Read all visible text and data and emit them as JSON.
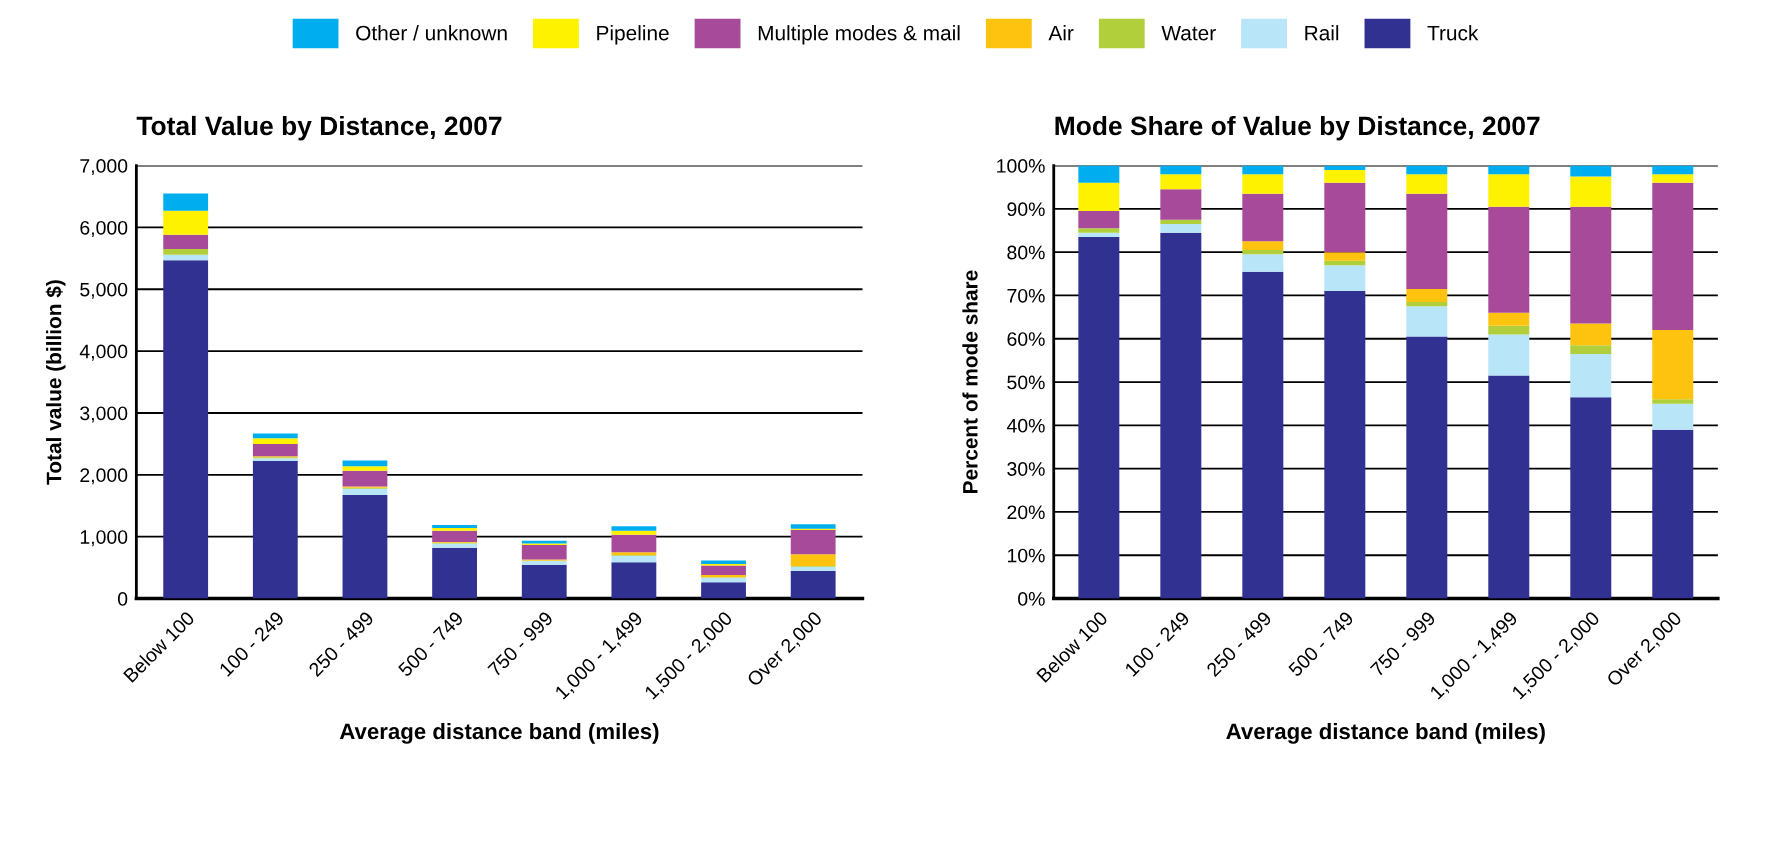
{
  "chart_data": [
    {
      "type": "bar",
      "title": "Total Value by Distance, 2007",
      "xlabel": "Average distance band (miles)",
      "ylabel": "Total value (billion $)",
      "stacked": true,
      "grid": "y",
      "legend": "top",
      "categories": [
        "Below 100",
        "100 - 249",
        "250 - 499",
        "500 - 749",
        "750 - 999",
        "1,000 - 1,499",
        "1,500 - 2,000",
        "Over 2,000"
      ],
      "ylim": [
        0,
        7000
      ],
      "yticks": [
        0,
        {
          "value": 1000,
          "label": "1,000"
        },
        {
          "value": 2000,
          "label": "2,000"
        },
        {
          "value": 3000,
          "label": "3,000"
        },
        {
          "value": 4000,
          "label": "4,000"
        },
        {
          "value": 5000,
          "label": "5,000"
        },
        {
          "value": 6000,
          "label": "6,000"
        },
        {
          "value": 7000,
          "label": "7,000"
        }
      ],
      "series": [
        {
          "name": "Truck",
          "color": "#313192",
          "values": [
            5470,
            2225,
            1675,
            820,
            545,
            585,
            265,
            445
          ]
        },
        {
          "name": "Rail",
          "color": "#b9e5f9",
          "values": [
            90,
            45,
            100,
            70,
            65,
            105,
            70,
            70
          ]
        },
        {
          "name": "Water",
          "color": "#b0cf3a",
          "values": [
            90,
            15,
            15,
            10,
            null,
            15,
            10,
            10
          ]
        },
        {
          "name": "Air",
          "color": "#fdc30e",
          "values": [
            null,
            15,
            20,
            15,
            20,
            45,
            35,
            190
          ]
        },
        {
          "name": "Multiple modes & mail",
          "color": "#a84a9a",
          "values": [
            230,
            200,
            255,
            180,
            235,
            280,
            155,
            395
          ]
        },
        {
          "name": "Pipeline",
          "color": "#fff200",
          "values": [
            390,
            90,
            75,
            45,
            25,
            65,
            25,
            20
          ]
        },
        {
          "name": "Other / unknown",
          "color": "#00aeef",
          "values": [
            280,
            80,
            90,
            50,
            45,
            75,
            55,
            70
          ]
        }
      ]
    },
    {
      "type": "bar",
      "title": "Mode Share of Value by Distance, 2007",
      "xlabel": "Average distance band (miles)",
      "ylabel": "Percent of mode share",
      "stacked": true,
      "grid": "y",
      "categories": [
        "Below 100",
        "100 - 249",
        "250 - 499",
        "500 - 749",
        "750 - 999",
        "1,000 - 1,499",
        "1,500 - 2,000",
        "Over 2,000"
      ],
      "ylim": [
        0,
        100
      ],
      "yticks": [
        {
          "value": 0,
          "label": "0%"
        },
        {
          "value": 10,
          "label": "10%"
        },
        {
          "value": 20,
          "label": "20%"
        },
        {
          "value": 30,
          "label": "30%"
        },
        {
          "value": 40,
          "label": "40%"
        },
        {
          "value": 50,
          "label": "50%"
        },
        {
          "value": 60,
          "label": "60%"
        },
        {
          "value": 70,
          "label": "70%"
        },
        {
          "value": 80,
          "label": "80%"
        },
        {
          "value": 90,
          "label": "90%"
        },
        {
          "value": 100,
          "label": "100%"
        }
      ],
      "series": [
        {
          "color": "#313192",
          "values": [
            83.5,
            84.5,
            75.5,
            71,
            60.5,
            51.5,
            46.5,
            39
          ]
        },
        {
          "color": "#b9e5f9",
          "values": [
            1,
            2,
            4,
            6,
            7,
            9.5,
            10,
            6
          ]
        },
        {
          "color": "#b0cf3a",
          "values": [
            1,
            1,
            1,
            1,
            1,
            2,
            2,
            1
          ]
        },
        {
          "color": "#fdc30e",
          "values": [
            0,
            0,
            2,
            2,
            3,
            3,
            5,
            16
          ]
        },
        {
          "color": "#a84a9a",
          "values": [
            4,
            7,
            11,
            16,
            22,
            24.5,
            27,
            34
          ]
        },
        {
          "color": "#fff200",
          "values": [
            6.5,
            3.5,
            4.5,
            3,
            4.5,
            7.5,
            7,
            2
          ]
        },
        {
          "color": "#00aeef",
          "values": [
            4,
            2,
            2,
            1,
            2,
            2,
            2.5,
            2
          ]
        }
      ]
    }
  ]
}
